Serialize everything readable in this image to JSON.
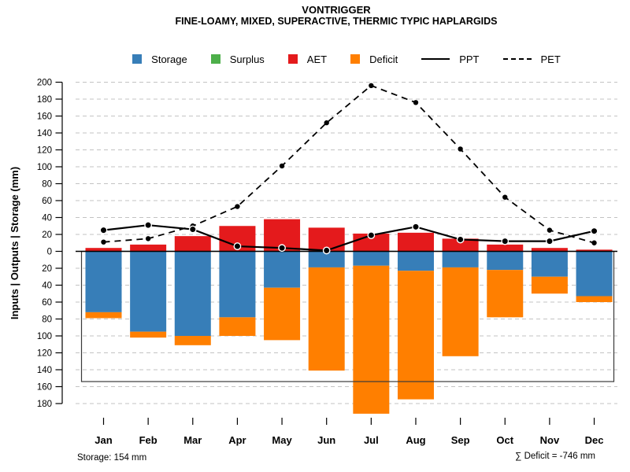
{
  "header": {
    "title": "VONTRIGGER",
    "subtitle": "FINE-LOAMY, MIXED, SUPERACTIVE, THERMIC TYPIC HAPLARGIDS"
  },
  "legend": {
    "items": [
      {
        "label": "Storage",
        "swatch": "square",
        "color": "#377EB8"
      },
      {
        "label": "Surplus",
        "swatch": "square",
        "color": "#4DAF4A"
      },
      {
        "label": "AET",
        "swatch": "square",
        "color": "#E41A1C"
      },
      {
        "label": "Deficit",
        "swatch": "square",
        "color": "#FF7F00"
      },
      {
        "label": "PPT",
        "swatch": "solid-line",
        "color": "#000000"
      },
      {
        "label": "PET",
        "swatch": "dashed-line",
        "color": "#000000"
      }
    ]
  },
  "footer": {
    "left": "Storage: 154 mm",
    "right": "∑ Deficit = -746 mm"
  },
  "chart_data": {
    "type": "bar",
    "subtype": "monthly-water-balance",
    "title": "VONTRIGGER",
    "subtitle": "FINE-LOAMY, MIXED, SUPERACTIVE, THERMIC TYPIC HAPLARGIDS",
    "units": "mm",
    "categories": [
      "Jan",
      "Feb",
      "Mar",
      "Apr",
      "May",
      "Jun",
      "Jul",
      "Aug",
      "Sep",
      "Oct",
      "Nov",
      "Dec"
    ],
    "series": [
      {
        "name": "Storage",
        "kind": "bar",
        "direction": "below-zero",
        "color": "#377EB8",
        "values": [
          72,
          95,
          100,
          78,
          43,
          19,
          17,
          23,
          19,
          22,
          30,
          53
        ]
      },
      {
        "name": "Surplus",
        "kind": "bar",
        "direction": "above-zero-stacked-on-aet",
        "color": "#4DAF4A",
        "values": [
          0,
          0,
          0,
          0,
          0,
          0,
          0,
          0,
          0,
          0,
          0,
          0
        ]
      },
      {
        "name": "AET",
        "kind": "bar",
        "direction": "above-zero",
        "color": "#E41A1C",
        "values": [
          4,
          8,
          18,
          30,
          38,
          28,
          21,
          22,
          15,
          8,
          4,
          2
        ]
      },
      {
        "name": "Deficit",
        "kind": "bar",
        "direction": "below-zero-stacked-under-storage",
        "color": "#FF7F00",
        "values": [
          7,
          7,
          11,
          22,
          62,
          122,
          175,
          152,
          105,
          56,
          20,
          7
        ]
      },
      {
        "name": "PPT",
        "kind": "line",
        "style": "solid",
        "color": "#000000",
        "values": [
          25,
          31,
          26,
          6,
          4,
          1,
          19,
          29,
          14,
          12,
          12,
          24
        ]
      },
      {
        "name": "PET",
        "kind": "line",
        "style": "dashed",
        "color": "#000000",
        "values": [
          11,
          15,
          30,
          53,
          101,
          152,
          196,
          176,
          121,
          64,
          25,
          10
        ]
      }
    ],
    "y_axis": {
      "label": "Inputs | Outputs | Storage   (mm)",
      "ticks_above_zero": [
        0,
        20,
        40,
        60,
        80,
        100,
        120,
        140,
        160,
        180,
        200
      ],
      "ticks_below_zero": [
        20,
        40,
        60,
        80,
        100,
        120,
        140,
        160,
        180
      ],
      "grid": true,
      "zero_line": true
    },
    "storage_capacity_mm": 154,
    "sum_deficit_mm": -746,
    "legend_position": "top-center"
  }
}
